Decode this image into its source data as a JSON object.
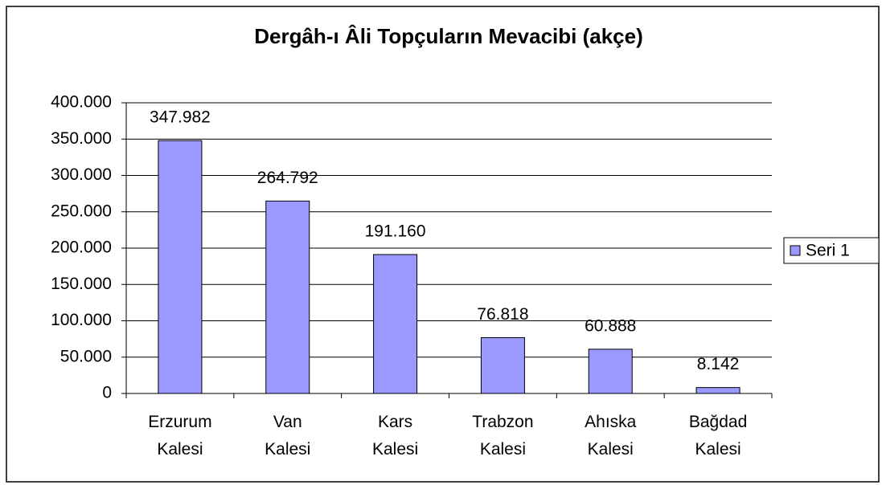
{
  "chart_data": {
    "type": "bar",
    "title": "Dergâh-ı Âli Topçuların Mevacibi (akçe)",
    "categories": [
      "Erzurum Kalesi",
      "Van Kalesi",
      "Kars Kalesi",
      "Trabzon Kalesi",
      "Ahıska Kalesi",
      "Bağdad Kalesi"
    ],
    "series": [
      {
        "name": "Seri 1",
        "color": "#9999ff",
        "values": [
          347982,
          264792,
          191160,
          76818,
          60888,
          8142
        ],
        "value_labels": [
          "347.982",
          "264.792",
          "191.160",
          "76.818",
          "60.888",
          "8.142"
        ]
      }
    ],
    "ylim": [
      0,
      400000
    ],
    "yticks": [
      0,
      {
        "value": 50000,
        "label": "50.000"
      },
      {
        "value": 100000,
        "label": "100.000"
      },
      {
        "value": 150000,
        "label": "150.000"
      },
      {
        "value": 200000,
        "label": "200.000"
      },
      {
        "value": 250000,
        "label": "250.000"
      },
      {
        "value": 300000,
        "label": "300.000"
      },
      {
        "value": 350000,
        "label": "350.000"
      },
      {
        "value": 400000,
        "label": "400.000"
      }
    ],
    "grid": true,
    "legend": "right"
  }
}
